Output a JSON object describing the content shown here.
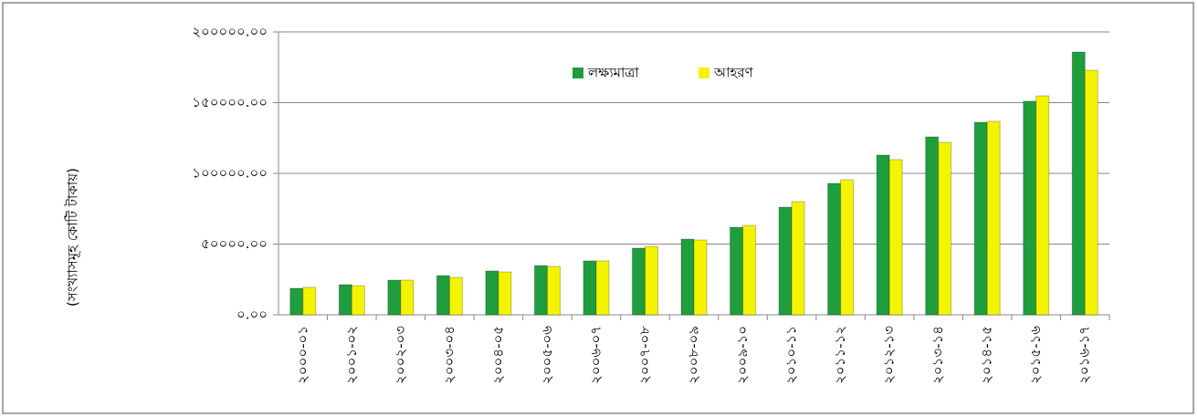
{
  "chart_data": {
    "type": "bar",
    "y_label": "(সংখ্যাসমূহ কোটি টাকায়)",
    "categories": [
      "২০০০-০১",
      "২০০১-০২",
      "২০০২-০৩",
      "২০০৩-০৪",
      "২০০৪-০৫",
      "২০০৫-০৬",
      "২০০৬-০৭",
      "২০০৭-০৮",
      "২০০৮-০৯",
      "২০০৯-১০",
      "২০১০-১১",
      "২০১১-১২",
      "২০১২-১৩",
      "২০১৩-১৪",
      "২০১৪-১৫",
      "২০১৫-১৬",
      "২০১৬-১৭"
    ],
    "series": [
      {
        "name": "লক্ষ্যমাত্রা",
        "color": "#1f9e3e",
        "values": [
          18700,
          21300,
          24500,
          27700,
          31000,
          34800,
          38100,
          47100,
          53500,
          61900,
          76100,
          92900,
          112900,
          125800,
          136100,
          151000,
          185800
        ]
      },
      {
        "name": "আহরণ",
        "color": "#f4f400",
        "values": [
          19400,
          20600,
          24500,
          26400,
          30300,
          34200,
          38100,
          48400,
          52900,
          63200,
          80000,
          95500,
          109700,
          121900,
          136800,
          154800,
          172900
        ]
      }
    ],
    "ylim": [
      0,
      200000
    ],
    "yticks": [
      {
        "value": 0,
        "label": "০.০০"
      },
      {
        "value": 50000,
        "label": "৫০০০০.০০"
      },
      {
        "value": 100000,
        "label": "১০০০০০.০০"
      },
      {
        "value": 150000,
        "label": "১৫০০০০.০০"
      },
      {
        "value": 200000,
        "label": "২০০০০০.০০"
      }
    ],
    "grid": true
  }
}
